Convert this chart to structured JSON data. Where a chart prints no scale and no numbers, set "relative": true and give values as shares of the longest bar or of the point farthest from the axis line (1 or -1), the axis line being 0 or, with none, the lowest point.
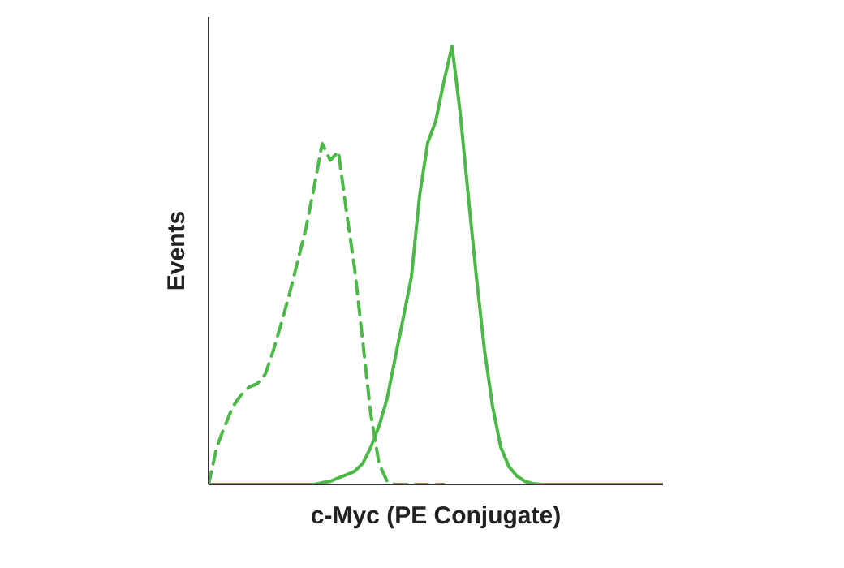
{
  "chart_data": {
    "type": "line",
    "relative": true,
    "xlabel": "c-Myc (PE Conjugate)",
    "ylabel": "Events",
    "grid": false,
    "categories": [
      null,
      null,
      null,
      null,
      null,
      null,
      null,
      null,
      null,
      null,
      null,
      null,
      null,
      null,
      null,
      null,
      null,
      null,
      null,
      null,
      null,
      null,
      null,
      null,
      null,
      null,
      null,
      null,
      null,
      null,
      null,
      null,
      null,
      null,
      null,
      null,
      null,
      null,
      null,
      null,
      null,
      null,
      null,
      null,
      null,
      null,
      null,
      null,
      null,
      null,
      null,
      null,
      null,
      null,
      null,
      null,
      null
    ],
    "series": [
      {
        "color": "#4cb848",
        "line_style": "dashed",
        "values": [
          0,
          0.085,
          0.133,
          0.178,
          0.204,
          0.222,
          0.23,
          0.252,
          0.307,
          0.37,
          0.437,
          0.511,
          0.585,
          0.678,
          0.778,
          0.74,
          0.76,
          0.622,
          0.493,
          0.326,
          0.159,
          0.048,
          0.007,
          0,
          0,
          0,
          0,
          0,
          0,
          0,
          null,
          null,
          null,
          null,
          null,
          null,
          null,
          null,
          null,
          null,
          null,
          null,
          null,
          null,
          null,
          null,
          null,
          null,
          null,
          null,
          null,
          null,
          null,
          null,
          null,
          null,
          null
        ]
      },
      {
        "color": "#4cb848",
        "line_style": "solid",
        "values": [
          0,
          0,
          0,
          0,
          0,
          0,
          0,
          0,
          0,
          0,
          0,
          0,
          0,
          0,
          0.004,
          0.007,
          0.015,
          0.022,
          0.03,
          0.048,
          0.085,
          0.133,
          0.196,
          0.289,
          0.381,
          0.474,
          0.659,
          0.78,
          0.83,
          0.92,
          1,
          0.85,
          0.659,
          0.474,
          0.307,
          0.178,
          0.085,
          0.041,
          0.019,
          0.007,
          0.002,
          0,
          0,
          0,
          0,
          0,
          0,
          0,
          0,
          0,
          0,
          0,
          0,
          0,
          0,
          0,
          0
        ]
      }
    ]
  }
}
